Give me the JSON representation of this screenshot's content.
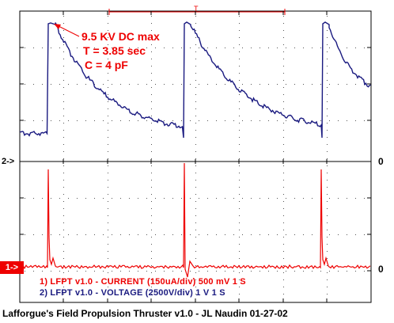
{
  "annotation": {
    "line1": "9.5 KV DC max",
    "line2": "T = 3.85 sec",
    "line3": "C = 4 pF"
  },
  "trigger_marker": "T",
  "channels": {
    "ch2_marker": "2->",
    "ch1_marker": "1->",
    "ch2_zero": "0",
    "ch1_zero": "0"
  },
  "legend": {
    "ch1": "1) LFPT v1.0 - CURRENT (150uA/div) 500 mV 1  S",
    "ch2": "2) LFPT v1.0 - VOLTAGE (2500V/div) 1  V 1  S"
  },
  "footer": "Lafforgue's Field Propulsion Thruster v1.0 - JL Naudin 01-27-02",
  "colors": {
    "ch1": "#ee0000",
    "ch2": "#1a1a80",
    "grid": "#000000",
    "background": "#ffffff"
  }
}
